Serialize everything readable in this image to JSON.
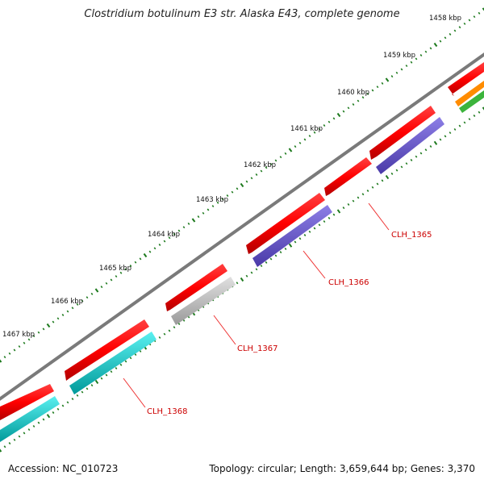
{
  "title": "Clostridium botulinum E3 str. Alaska E43, complete genome",
  "accession": "Accession: NC_010723",
  "topology": "Topology: circular; Length: 3,659,644 bp; Genes: 3,370",
  "kbp_labels": [
    "1458 kbp",
    "1459 kbp",
    "1460 kbp",
    "1461 kbp",
    "1462 kbp",
    "1463 kbp",
    "1464 kbp",
    "1465 kbp",
    "1466 kbp",
    "1467 kbp"
  ],
  "gene_labels": [
    "CLH_1365",
    "CLH_1366",
    "CLH_1367",
    "CLH_1368"
  ],
  "colors": {
    "backbone": "#7a7a7a",
    "cds": "#ff0000",
    "ticks": "#1e7a1e",
    "label": "#cc0000",
    "track_purple": "#6b5bcf",
    "track_gray": "#c8c8c8",
    "track_cyan": "#00d2d2",
    "track_orange": "#ff8c00",
    "track_green": "#3cb43c"
  }
}
